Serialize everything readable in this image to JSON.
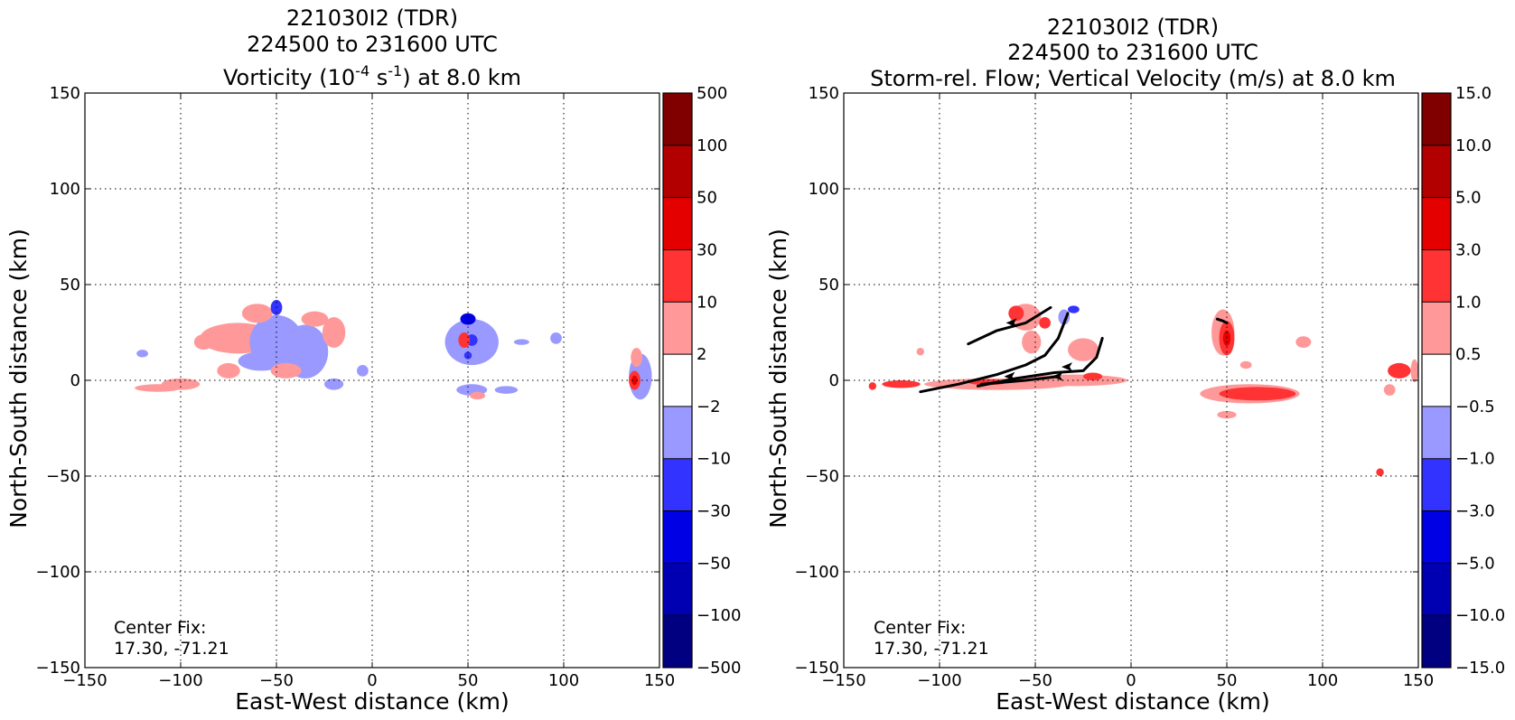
{
  "chart_data": [
    {
      "type": "heatmap",
      "title_lines": [
        "221030I2 (TDR)",
        "224500 to 231600 UTC"
      ],
      "title_line3": {
        "pre": "Vorticity (10",
        "exp1": "-4",
        "mid": " s",
        "exp2": "-1",
        "post": ") at 8.0 km"
      },
      "xlabel": "East-West distance (km)",
      "ylabel": "North-South distance (km)",
      "xlim": [
        -150,
        150
      ],
      "ylim": [
        -150,
        150
      ],
      "xticks": [
        -150,
        -100,
        -50,
        0,
        50,
        100,
        150
      ],
      "yticks": [
        -150,
        -100,
        -50,
        0,
        50,
        100,
        150
      ],
      "grid": true,
      "center_fix": {
        "label": "Center Fix:",
        "coords": "17.30, -71.21"
      },
      "colorbar": {
        "labels": [
          "-500",
          "-100",
          "-50",
          "-30",
          "-10",
          "-2",
          "2",
          "10",
          "30",
          "50",
          "100",
          "500"
        ],
        "colors": [
          "#000080",
          "#0000b2",
          "#0000e5",
          "#3333ff",
          "#9999ff",
          "#ffffff",
          "#ff9999",
          "#ff3333",
          "#e50000",
          "#b20000",
          "#800000"
        ]
      },
      "regions": [
        {
          "x": -70,
          "y": 22,
          "rx": 20,
          "ry": 8,
          "level": 6
        },
        {
          "x": -50,
          "y": 20,
          "rx": 14,
          "ry": 14,
          "level": 4
        },
        {
          "x": -35,
          "y": 15,
          "rx": 12,
          "ry": 14,
          "level": 4
        },
        {
          "x": -58,
          "y": 10,
          "rx": 12,
          "ry": 5,
          "level": 4
        },
        {
          "x": -88,
          "y": 20,
          "rx": 5,
          "ry": 4,
          "level": 6
        },
        {
          "x": -60,
          "y": 35,
          "rx": 8,
          "ry": 5,
          "level": 6
        },
        {
          "x": -30,
          "y": 32,
          "rx": 7,
          "ry": 4,
          "level": 6
        },
        {
          "x": -20,
          "y": 25,
          "rx": 6,
          "ry": 8,
          "level": 6
        },
        {
          "x": -45,
          "y": 5,
          "rx": 8,
          "ry": 4,
          "level": 6
        },
        {
          "x": -75,
          "y": 5,
          "rx": 6,
          "ry": 4,
          "level": 6
        },
        {
          "x": -100,
          "y": -2,
          "rx": 10,
          "ry": 3,
          "level": 6
        },
        {
          "x": -112,
          "y": -4,
          "rx": 12,
          "ry": 2,
          "level": 6
        },
        {
          "x": -20,
          "y": -2,
          "rx": 5,
          "ry": 3,
          "level": 4
        },
        {
          "x": -5,
          "y": 5,
          "rx": 3,
          "ry": 3,
          "level": 4
        },
        {
          "x": -120,
          "y": 14,
          "rx": 3,
          "ry": 2,
          "level": 4
        },
        {
          "x": -50,
          "y": 38,
          "rx": 3,
          "ry": 4,
          "level": 3
        },
        {
          "x": 52,
          "y": 20,
          "rx": 14,
          "ry": 12,
          "level": 4
        },
        {
          "x": 50,
          "y": 32,
          "rx": 4,
          "ry": 3,
          "level": 2
        },
        {
          "x": 52,
          "y": 21,
          "rx": 3,
          "ry": 3,
          "level": 3
        },
        {
          "x": 48,
          "y": 21,
          "rx": 3,
          "ry": 4,
          "level": 7
        },
        {
          "x": 50,
          "y": 13,
          "rx": 2,
          "ry": 2,
          "level": 3
        },
        {
          "x": 96,
          "y": 22,
          "rx": 3,
          "ry": 3,
          "level": 4
        },
        {
          "x": 78,
          "y": 20,
          "rx": 4,
          "ry": 1.5,
          "level": 4
        },
        {
          "x": 52,
          "y": -5,
          "rx": 8,
          "ry": 3,
          "level": 4
        },
        {
          "x": 70,
          "y": -5,
          "rx": 6,
          "ry": 2,
          "level": 4
        },
        {
          "x": 55,
          "y": -8,
          "rx": 4,
          "ry": 2,
          "level": 6
        },
        {
          "x": 140,
          "y": 2,
          "rx": 6,
          "ry": 12,
          "level": 4
        },
        {
          "x": 138,
          "y": 12,
          "rx": 3,
          "ry": 5,
          "level": 6
        },
        {
          "x": 137,
          "y": 0,
          "rx": 3,
          "ry": 5,
          "level": 7
        },
        {
          "x": 137,
          "y": 0,
          "rx": 1.5,
          "ry": 2.5,
          "level": 8
        }
      ]
    },
    {
      "type": "heatmap",
      "title_lines": [
        "221030I2 (TDR)",
        "224500 to 231600 UTC",
        "Storm-rel. Flow; Vertical Velocity (m/s) at 8.0 km"
      ],
      "xlabel": "East-West distance (km)",
      "ylabel": "North-South distance (km)",
      "xlim": [
        -150,
        150
      ],
      "ylim": [
        -150,
        150
      ],
      "xticks": [
        -150,
        -100,
        -50,
        0,
        50,
        100,
        150
      ],
      "yticks": [
        -150,
        -100,
        -50,
        0,
        50,
        100,
        150
      ],
      "grid": true,
      "center_fix": {
        "label": "Center Fix:",
        "coords": "17.30, -71.21"
      },
      "colorbar": {
        "labels": [
          "-15.0",
          "-10.0",
          "-5.0",
          "-3.0",
          "-1.0",
          "-0.5",
          "0.5",
          "1.0",
          "3.0",
          "5.0",
          "10.0",
          "15.0"
        ],
        "colors": [
          "#000080",
          "#0000b2",
          "#0000e5",
          "#3333ff",
          "#9999ff",
          "#ffffff",
          "#ff9999",
          "#ff3333",
          "#e50000",
          "#b20000",
          "#800000"
        ]
      },
      "regions": [
        {
          "x": -70,
          "y": -2,
          "rx": 38,
          "ry": 3,
          "level": 6
        },
        {
          "x": -30,
          "y": 0,
          "rx": 28,
          "ry": 3,
          "level": 6
        },
        {
          "x": -120,
          "y": -2,
          "rx": 10,
          "ry": 2,
          "level": 7
        },
        {
          "x": -75,
          "y": -1,
          "rx": 10,
          "ry": 1.5,
          "level": 7
        },
        {
          "x": -20,
          "y": 2,
          "rx": 5,
          "ry": 2,
          "level": 7
        },
        {
          "x": -135,
          "y": -3,
          "rx": 2,
          "ry": 2,
          "level": 7
        },
        {
          "x": -55,
          "y": 33,
          "rx": 8,
          "ry": 7,
          "level": 6
        },
        {
          "x": -60,
          "y": 35,
          "rx": 4,
          "ry": 4,
          "level": 7
        },
        {
          "x": -52,
          "y": 20,
          "rx": 5,
          "ry": 6,
          "level": 6
        },
        {
          "x": -45,
          "y": 30,
          "rx": 3,
          "ry": 3,
          "level": 7
        },
        {
          "x": -25,
          "y": 16,
          "rx": 8,
          "ry": 6,
          "level": 6
        },
        {
          "x": -35,
          "y": 33,
          "rx": 3,
          "ry": 4,
          "level": 4
        },
        {
          "x": -30,
          "y": 37,
          "rx": 3,
          "ry": 2,
          "level": 3
        },
        {
          "x": -110,
          "y": 15,
          "rx": 2,
          "ry": 2,
          "level": 6
        },
        {
          "x": 48,
          "y": 25,
          "rx": 6,
          "ry": 12,
          "level": 6
        },
        {
          "x": 50,
          "y": 22,
          "rx": 4,
          "ry": 9,
          "level": 7
        },
        {
          "x": 50,
          "y": 22,
          "rx": 2,
          "ry": 4,
          "level": 8
        },
        {
          "x": 62,
          "y": -7,
          "rx": 26,
          "ry": 5,
          "level": 6
        },
        {
          "x": 66,
          "y": -7,
          "rx": 20,
          "ry": 3.5,
          "level": 7
        },
        {
          "x": 50,
          "y": -18,
          "rx": 5,
          "ry": 2,
          "level": 6
        },
        {
          "x": 90,
          "y": 20,
          "rx": 4,
          "ry": 3,
          "level": 6
        },
        {
          "x": 60,
          "y": 8,
          "rx": 3,
          "ry": 2,
          "level": 6
        },
        {
          "x": 140,
          "y": 5,
          "rx": 6,
          "ry": 4,
          "level": 7
        },
        {
          "x": 135,
          "y": -5,
          "rx": 3,
          "ry": 3,
          "level": 6
        },
        {
          "x": 130,
          "y": -48,
          "rx": 2,
          "ry": 2,
          "level": 7
        },
        {
          "x": 148,
          "y": 5,
          "rx": 2,
          "ry": 6,
          "level": 6
        }
      ],
      "streamlines": [
        [
          [
            -110,
            -6
          ],
          [
            -90,
            -2
          ],
          [
            -70,
            3
          ],
          [
            -55,
            8
          ],
          [
            -45,
            13
          ],
          [
            -38,
            22
          ],
          [
            -33,
            35
          ]
        ],
        [
          [
            -85,
            19
          ],
          [
            -70,
            26
          ],
          [
            -55,
            30
          ],
          [
            -42,
            38
          ]
        ],
        [
          [
            -80,
            -3
          ],
          [
            -60,
            1
          ],
          [
            -40,
            4
          ],
          [
            -25,
            5
          ],
          [
            -18,
            12
          ],
          [
            -15,
            22
          ]
        ],
        [
          [
            -78,
            -2
          ],
          [
            -55,
            0
          ],
          [
            -38,
            2
          ]
        ],
        [
          [
            45,
            32
          ],
          [
            48,
            31
          ],
          [
            50,
            30
          ]
        ]
      ],
      "arrow_heads": [
        [
          -62,
          30
        ],
        [
          -33,
          7
        ],
        [
          -63,
          2
        ],
        [
          -38,
          2
        ]
      ]
    }
  ]
}
